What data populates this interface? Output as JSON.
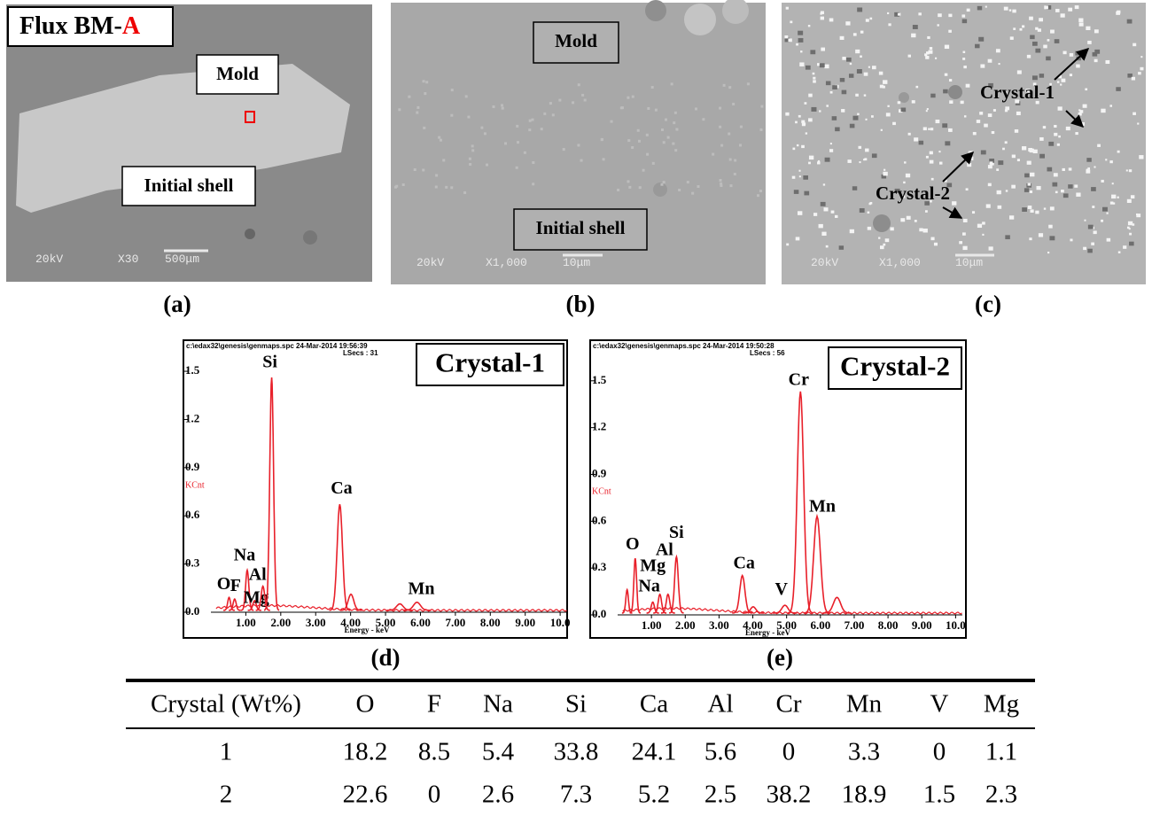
{
  "images": [
    {
      "title_prefix": "Flux BM-",
      "title_highlight": "A",
      "labels": [
        "Mold",
        "Initial shell"
      ],
      "kv": "20kV",
      "mag": "X30",
      "bar": "500μm",
      "caption": "(a)"
    },
    {
      "labels": [
        "Mold",
        "Initial shell"
      ],
      "kv": "20kV",
      "mag": "X1,000",
      "bar": "10μm",
      "caption": "(b)"
    },
    {
      "labels": [
        "Crystal-1",
        "Crystal-2"
      ],
      "kv": "20kV",
      "mag": "X1,000",
      "bar": "10μm",
      "caption": "(c)"
    }
  ],
  "chart_data": [
    {
      "type": "spectrum",
      "header": "c:\\edax32\\genesis\\genmaps.spc 24-Mar-2014 19:56:39",
      "lsecs": "LSecs : 31",
      "title": "Crystal-1",
      "caption": "(d)",
      "y_label": "KCnt",
      "x_label": "Energy - keV",
      "color": "#e8202a",
      "ylim": [
        0,
        1.55
      ],
      "yticks": [
        {
          "value": 0,
          "label": "0.0"
        },
        0.3,
        0.6,
        0.9,
        1.2,
        1.5
      ],
      "xlim": [
        0,
        10.2
      ],
      "xticks": [
        {
          "value": 1,
          "label": "1.00"
        },
        {
          "value": 2,
          "label": "2.00"
        },
        {
          "value": 3,
          "label": "3.00"
        },
        {
          "value": 4,
          "label": "4.00"
        },
        {
          "value": 5,
          "label": "5.00"
        },
        {
          "value": 6,
          "label": "6.00"
        },
        {
          "value": 7,
          "label": "7.00"
        },
        {
          "value": 8,
          "label": "8.00"
        },
        {
          "value": 9,
          "label": "9.00"
        },
        {
          "value": 10,
          "label": "10.0"
        }
      ],
      "peaks": {
        "labels": [
          "O",
          "F",
          "Na",
          "Mg",
          "Al",
          "Si",
          "Ca",
          null,
          null,
          "Mn"
        ],
        "x": [
          0.52,
          0.68,
          1.04,
          1.25,
          1.49,
          1.74,
          3.69,
          4.01,
          5.41,
          5.9
        ],
        "y": [
          0.08,
          0.07,
          0.25,
          0.06,
          0.15,
          1.45,
          0.66,
          0.1,
          0.04,
          0.05
        ]
      }
    },
    {
      "type": "spectrum",
      "header": "c:\\edax32\\genesis\\genmaps.spc 24-Mar-2014 19:50:28",
      "lsecs": "LSecs : 56",
      "title": "Crystal-2",
      "caption": "(e)",
      "y_label": "KCnt",
      "x_label": "Energy - keV",
      "color": "#e8202a",
      "ylim": [
        0,
        1.55
      ],
      "yticks": [
        {
          "value": 0,
          "label": "0.0"
        },
        0.3,
        0.6,
        0.9,
        1.2,
        1.5
      ],
      "xlim": [
        0,
        10.2
      ],
      "xticks": [
        {
          "value": 1,
          "label": "1.00"
        },
        {
          "value": 2,
          "label": "2.00"
        },
        {
          "value": 3,
          "label": "3.00"
        },
        {
          "value": 4,
          "label": "4.00"
        },
        {
          "value": 5,
          "label": "5.00"
        },
        {
          "value": 6,
          "label": "6.00"
        },
        {
          "value": 7,
          "label": "7.00"
        },
        {
          "value": 8,
          "label": "8.00"
        },
        {
          "value": 9,
          "label": "9.00"
        },
        {
          "value": 10,
          "label": "10.0"
        }
      ],
      "peaks": {
        "labels": [
          null,
          "O",
          "Na",
          "Mg",
          "Al",
          "Si",
          "Ca",
          null,
          "V",
          "Cr",
          "Mn",
          null
        ],
        "x": [
          0.28,
          0.52,
          1.04,
          1.25,
          1.49,
          1.74,
          3.69,
          4.01,
          4.95,
          5.41,
          5.9,
          6.49
        ],
        "y": [
          0.15,
          0.35,
          0.07,
          0.12,
          0.12,
          0.36,
          0.24,
          0.04,
          0.05,
          1.42,
          0.62,
          0.1
        ]
      }
    }
  ],
  "table": {
    "header": [
      "Crystal (Wt%)",
      "O",
      "F",
      "Na",
      "Si",
      "Ca",
      "Al",
      "Cr",
      "Mn",
      "V",
      "Mg"
    ],
    "rows": [
      [
        "1",
        "18.2",
        "8.5",
        "5.4",
        "33.8",
        "24.1",
        "5.6",
        "0",
        "3.3",
        "0",
        "1.1"
      ],
      [
        "2",
        "22.6",
        "0",
        "2.6",
        "7.3",
        "5.2",
        "2.5",
        "38.2",
        "18.9",
        "1.5",
        "2.3"
      ]
    ]
  }
}
